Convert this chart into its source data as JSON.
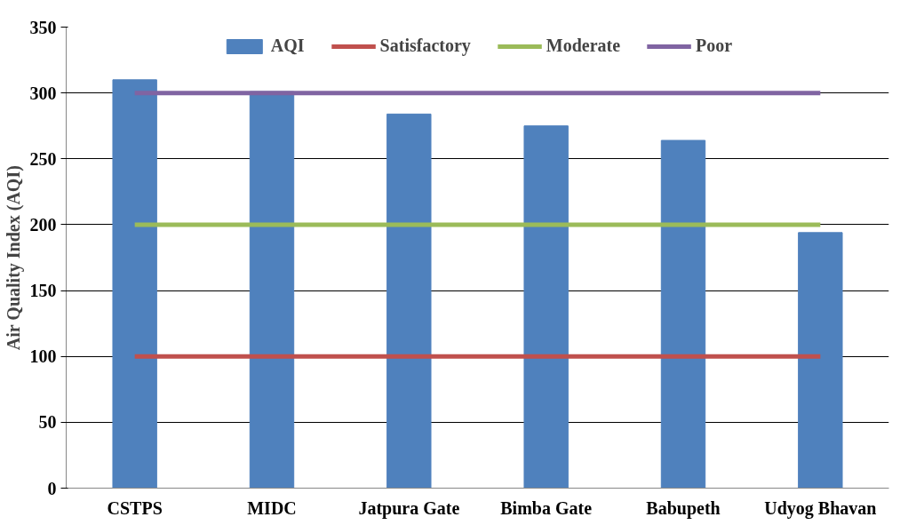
{
  "chart_data": {
    "type": "bar",
    "ylabel": "Air Quality Index (AQI)",
    "categories": [
      "CSTPS",
      "MIDC",
      "Jatpura Gate",
      "Bimba Gate",
      "Babupeth",
      "Udyog Bhavan"
    ],
    "series": [
      {
        "name": "AQI",
        "color": "#4f81bd",
        "values": [
          310,
          301,
          284,
          275,
          264,
          194
        ]
      },
      {
        "name": "Satisfactory",
        "type": "line",
        "color": "#c0504d",
        "values": [
          100,
          100,
          100,
          100,
          100,
          100
        ]
      },
      {
        "name": "Moderate",
        "type": "line",
        "color": "#9bbb59",
        "values": [
          200,
          200,
          200,
          200,
          200,
          200
        ]
      },
      {
        "name": "Poor",
        "type": "line",
        "color": "#8064a2",
        "values": [
          300,
          300,
          300,
          300,
          300,
          300
        ]
      }
    ],
    "ylim": [
      0,
      350
    ],
    "yticks": [
      0,
      50,
      100,
      150,
      200,
      250,
      300,
      350
    ],
    "grid": "y",
    "legend": "top"
  }
}
